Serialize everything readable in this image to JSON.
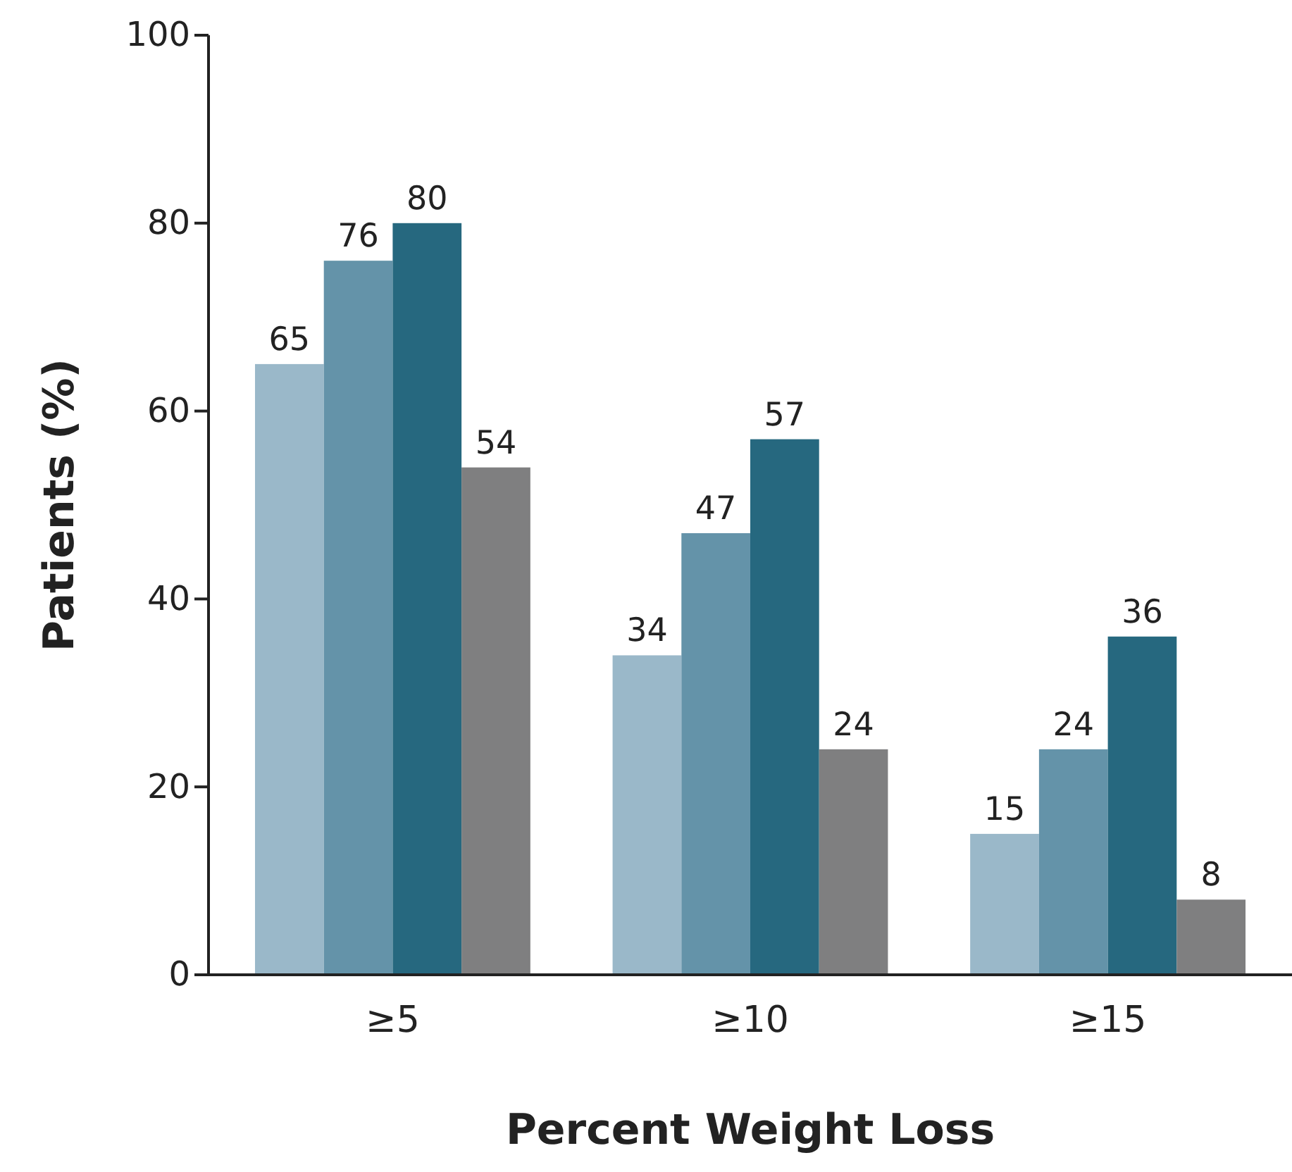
{
  "chart_data": {
    "type": "bar",
    "xlabel": "Percent Weight Loss",
    "ylabel": "Patients (%)",
    "categories": [
      "≥5",
      "≥10",
      "≥15"
    ],
    "series": [
      {
        "color": "#9ab8c9",
        "values": [
          65,
          34,
          15
        ]
      },
      {
        "color": "#6493a9",
        "values": [
          76,
          47,
          24
        ]
      },
      {
        "color": "#26687f",
        "values": [
          80,
          57,
          36
        ]
      },
      {
        "color": "#7f7f80",
        "values": [
          54,
          24,
          8
        ]
      }
    ],
    "ylim": [
      0,
      100
    ],
    "yticks": [
      0,
      20,
      40,
      60,
      80,
      100
    ],
    "data_labels": true
  }
}
